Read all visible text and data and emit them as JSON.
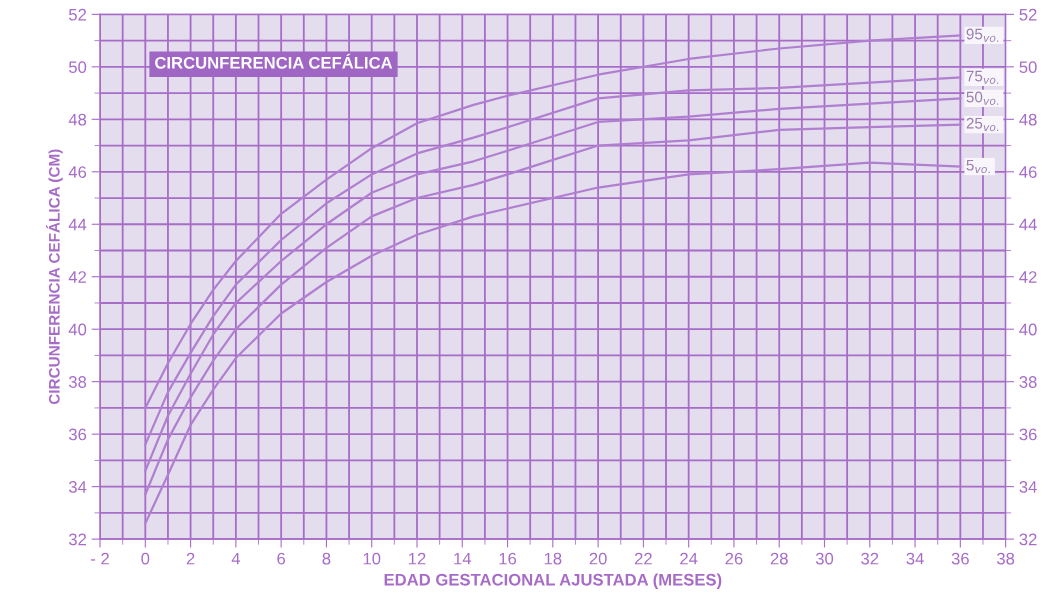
{
  "chart_data": {
    "type": "line",
    "title": "CIRCUNFERENCIA CEFÁLICA",
    "xlabel": "EDAD GESTACIONAL AJUSTADA (MESES)",
    "ylabel": "CIRCUNFERENCIA CEFÁLICA (CM)",
    "x": [
      0,
      1,
      2,
      3,
      4,
      6,
      8,
      10,
      12,
      14.5,
      16,
      20,
      24,
      28,
      32,
      36
    ],
    "series": [
      {
        "name": "95$_{vo.}$",
        "color": "#b07fd0",
        "values": [
          37.0,
          38.7,
          40.2,
          41.5,
          42.6,
          44.4,
          45.7,
          46.9,
          47.85,
          48.55,
          48.9,
          49.7,
          50.3,
          50.7,
          51.0,
          51.2
        ]
      },
      {
        "name": "75$_{vo.}$",
        "color": "#b07fd0",
        "values": [
          35.6,
          37.6,
          39.1,
          40.5,
          41.7,
          43.4,
          44.8,
          45.9,
          46.7,
          47.3,
          47.7,
          48.8,
          49.1,
          49.2,
          49.4,
          49.6
        ]
      },
      {
        "name": "50$_{vo.}$",
        "color": "#b07fd0",
        "values": [
          34.6,
          36.7,
          38.3,
          39.8,
          41.0,
          42.6,
          44.0,
          45.2,
          45.9,
          46.4,
          46.8,
          47.9,
          48.1,
          48.4,
          48.6,
          48.8
        ]
      },
      {
        "name": "25$_{vo.}$",
        "color": "#b07fd0",
        "values": [
          33.7,
          35.8,
          37.4,
          38.8,
          40.0,
          41.7,
          43.1,
          44.3,
          45.0,
          45.5,
          45.9,
          47.0,
          47.2,
          47.6,
          47.7,
          47.8
        ]
      },
      {
        "name": "5$_{vo.}$",
        "color": "#b07fd0",
        "values": [
          32.6,
          34.45,
          36.35,
          37.7,
          38.9,
          40.6,
          41.8,
          42.8,
          43.6,
          44.3,
          44.6,
          45.4,
          45.9,
          46.1,
          46.35,
          46.2
        ]
      }
    ],
    "xlim": [
      -2,
      38
    ],
    "xticks": [
      {
        "value": -2,
        "label": "- 2"
      },
      0,
      2,
      4,
      6,
      8,
      10,
      12,
      14,
      16,
      18,
      20,
      22,
      24,
      26,
      28,
      30,
      32,
      34,
      36,
      38
    ],
    "ylim": [
      32,
      52
    ],
    "yticks": [
      32,
      34,
      36,
      38,
      40,
      42,
      44,
      46,
      48,
      50,
      52
    ],
    "y2lim": [
      32,
      52
    ],
    "y2ticks": [
      32,
      34,
      36,
      38,
      40,
      42,
      44,
      46,
      48,
      50,
      52
    ],
    "grid": true,
    "legend": false,
    "marker": "none",
    "line_style": "solid"
  }
}
